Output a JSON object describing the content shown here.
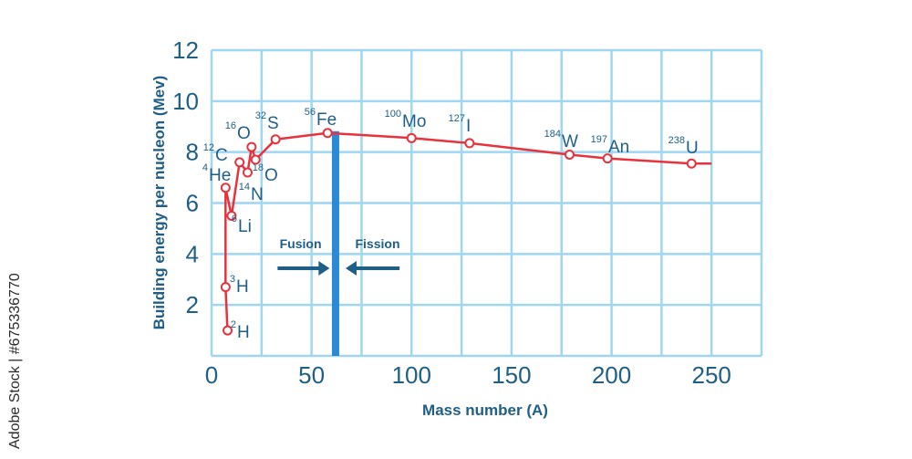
{
  "chart_data": {
    "type": "line",
    "title": "",
    "xlabel": "Mass number (A)",
    "ylabel": "Building energy per nucleon (Mev)",
    "xlim": [
      0,
      275
    ],
    "ylim": [
      0,
      12
    ],
    "x_ticks": [
      0,
      50,
      100,
      150,
      200,
      250
    ],
    "y_ticks": [
      2,
      4,
      6,
      8,
      10,
      12
    ],
    "grid": true,
    "series": [
      {
        "color": "#e8323c",
        "points": [
          {
            "x": 8,
            "y": 1.0,
            "label": "H",
            "mass": "2"
          },
          {
            "x": 7,
            "y": 2.7,
            "label": "H",
            "mass": "3"
          },
          {
            "x": 7,
            "y": 6.6,
            "label": "He",
            "mass": "4"
          },
          {
            "x": 10,
            "y": 5.5,
            "label": "Li",
            "mass": "6"
          },
          {
            "x": 14,
            "y": 7.6,
            "label": "C",
            "mass": "12"
          },
          {
            "x": 18,
            "y": 7.2,
            "label": "N",
            "mass": "14"
          },
          {
            "x": 20,
            "y": 8.2,
            "label": "O",
            "mass": "16"
          },
          {
            "x": 22,
            "y": 7.7,
            "label": "O",
            "mass": "18"
          },
          {
            "x": 32,
            "y": 8.5,
            "label": "S",
            "mass": "32"
          },
          {
            "x": 58,
            "y": 8.75,
            "label": "Fe",
            "mass": "56"
          },
          {
            "x": 100,
            "y": 8.55,
            "label": "Mo",
            "mass": "100"
          },
          {
            "x": 129,
            "y": 8.35,
            "label": "I",
            "mass": "127"
          },
          {
            "x": 179,
            "y": 7.9,
            "label": "W",
            "mass": "184"
          },
          {
            "x": 198,
            "y": 7.75,
            "label": "An",
            "mass": "197"
          },
          {
            "x": 240,
            "y": 7.55,
            "label": "U",
            "mass": "238"
          },
          {
            "x": 250,
            "y": 7.55
          }
        ]
      }
    ],
    "divider": {
      "x": 62,
      "color": "#2a8ad6"
    },
    "regions": [
      {
        "label": "Fusion",
        "arrow": "right"
      },
      {
        "label": "Fission",
        "arrow": "left"
      }
    ]
  },
  "watermark": "Adobe Stock | #675336770"
}
